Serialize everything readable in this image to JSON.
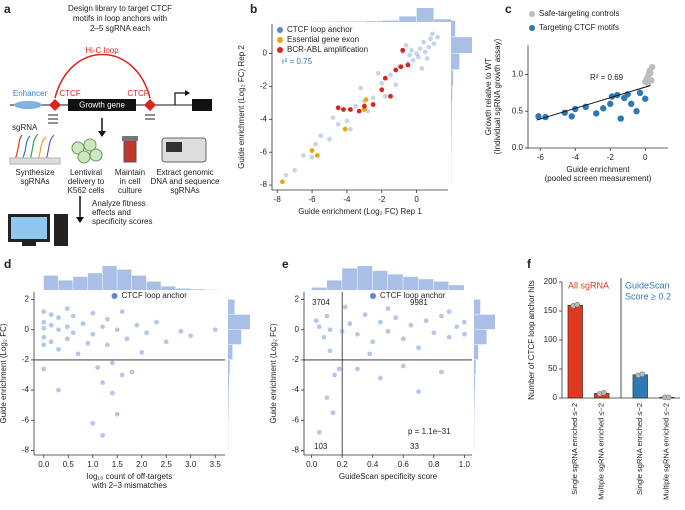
{
  "panel_labels": [
    "a",
    "b",
    "c",
    "d",
    "e",
    "f"
  ],
  "diagram": {
    "title_lines": [
      "Design library to target CTCF",
      "motifs in loop anchors with",
      "2–5 sgRNA each"
    ],
    "loop": "Hi-C loop",
    "enhancer": "Enhancer",
    "ctcf_left": "CTCF",
    "ctcf_right": "CTCF",
    "gene": "Growth gene",
    "sgrna": "sgRNA",
    "step_synthesize": [
      "Synthesize",
      "sgRNAs"
    ],
    "step_delivery": [
      "Lentiviral",
      "delivery to",
      "K562 cells"
    ],
    "step_maintain": [
      "Maintain",
      "in cell",
      "culture"
    ],
    "step_extract": [
      "Extract genomic",
      "DNA and sequence",
      "sgRNAs"
    ],
    "step_analyze": [
      "Analyze fitness",
      "effects and",
      "specificity scores"
    ]
  },
  "chart_data": [
    {
      "type": "scatter",
      "xlabel": [
        "Guide enrichment (Log₂ FC) Rep 1"
      ],
      "ylabel": [
        "Guide enrichment (Log₂ FC) Rep 2"
      ],
      "xlim": [
        -8.3,
        1.8
      ],
      "ylim": [
        -8.3,
        1.8
      ],
      "xticks": [
        -8,
        -6,
        -4,
        -2,
        0
      ],
      "yticks": [
        -8,
        -6,
        -4,
        -2,
        0
      ],
      "legend": "upper left",
      "annotations": [
        "r² = 0.75"
      ],
      "series": [
        {
          "name": "CTCF loop anchor",
          "color": "#5b86c9",
          "opacity": 0.35,
          "x": [
            0.2,
            0.5,
            -0.3,
            0.8,
            -0.5,
            0.1,
            1.0,
            -1.0,
            -1.5,
            -2.0,
            -2.5,
            -3.0,
            -3.5,
            -4.0,
            -4.5,
            -5.0,
            -5.5,
            -6.0,
            -6.5,
            -7.0,
            -7.5,
            0.4,
            -0.2,
            0.6,
            -0.8,
            0.9,
            -1.2,
            -2.2,
            -3.2,
            -1.8,
            0.3,
            -0.6,
            1.2,
            -4.8,
            -2.8,
            0.0,
            0.7,
            -0.4,
            -3.8,
            -5.8
          ],
          "y": [
            0.3,
            0.1,
            0.2,
            0.9,
            -0.6,
            -0.2,
            0.6,
            -0.8,
            -1.3,
            -1.8,
            -2.7,
            -2.9,
            -3.2,
            -4.1,
            -4.3,
            -5.2,
            -5.0,
            -6.3,
            -6.2,
            -7.1,
            -7.4,
            0.7,
            -0.4,
            -0.3,
            0.1,
            1.2,
            -1.9,
            -1.2,
            -2.1,
            -2.6,
            -0.9,
            0.5,
            1.0,
            -3.9,
            -3.5,
            0.0,
            0.4,
            -0.1,
            -4.6,
            -5.5
          ]
        },
        {
          "name": "Essential gene exon",
          "color": "#f0a30a",
          "opacity": 1,
          "x": [
            -7.7,
            -6.0,
            -5.7,
            -4.1,
            -3.0,
            -2.9
          ],
          "y": [
            -7.8,
            -5.9,
            -6.2,
            -4.6,
            -3.4,
            -2.8
          ]
        },
        {
          "name": "BCR-ABL amplification",
          "color": "#d9261c",
          "opacity": 1,
          "x": [
            -4.5,
            -4.2,
            -3.8,
            -3.3,
            -3.0,
            -2.5,
            -2.0,
            -1.8,
            -1.2,
            -0.9,
            -0.8,
            -0.5,
            -1.5
          ],
          "y": [
            -3.3,
            -3.4,
            -3.4,
            -3.5,
            -3.2,
            -3.1,
            -2.2,
            -1.5,
            -1.0,
            -0.8,
            0.2,
            -0.7,
            -2.6
          ]
        }
      ],
      "x_hist": {
        "bins": [
          -8,
          -7,
          -6,
          -5,
          -4,
          -3,
          -2,
          -1,
          0,
          1,
          2
        ],
        "counts": [
          1,
          1,
          2,
          3,
          4,
          6,
          10,
          40,
          100,
          20
        ]
      },
      "y_hist": {
        "bins": [
          -8,
          -7,
          -6,
          -5,
          -4,
          -3,
          -2,
          -1,
          0,
          1,
          2
        ],
        "counts": [
          1,
          1,
          2,
          3,
          4,
          6,
          10,
          40,
          100,
          20
        ]
      }
    },
    {
      "type": "scatter",
      "xlabel": [
        "Guide enrichment",
        "(pooled screen measurement)"
      ],
      "ylabel": [
        "Growth relative to WT",
        "(Individual sgRNA growth assay)"
      ],
      "xlim": [
        -6.7,
        1.3
      ],
      "ylim": [
        0,
        1.4
      ],
      "xticks": [
        -6,
        -4,
        -2,
        0
      ],
      "yticks": [
        {
          "value": 0,
          "label": "0.0"
        },
        0.5,
        {
          "value": 1,
          "label": "1.0"
        }
      ],
      "legend": "top",
      "annotations": [
        "R² = 0.69"
      ],
      "fit": {
        "x": [
          -6.2,
          0.3
        ],
        "y": [
          0.38,
          0.85
        ]
      },
      "series": [
        {
          "name": "Safe-targeting controls",
          "color": "#bdbdbd",
          "opacity": 1,
          "x": [
            0.0,
            0.1,
            0.2,
            0.25,
            0.3,
            0.35,
            0.4,
            0.15
          ],
          "y": [
            0.9,
            0.95,
            1.0,
            1.05,
            1.02,
            0.92,
            1.1,
            0.88
          ]
        },
        {
          "name": "Targeting CTCF motifs",
          "color": "#2f78b5",
          "opacity": 1,
          "x": [
            -6.1,
            -5.7,
            -4.6,
            -4.2,
            -4.0,
            -3.4,
            -2.8,
            -2.4,
            -2.0,
            -1.9,
            -1.6,
            -1.4,
            -1.2,
            -1.0,
            -0.8,
            -0.5,
            -0.3,
            0.0
          ],
          "y": [
            0.43,
            0.42,
            0.48,
            0.43,
            0.53,
            0.56,
            0.47,
            0.54,
            0.6,
            0.7,
            0.72,
            0.4,
            0.68,
            0.73,
            0.6,
            0.5,
            0.75,
            0.67
          ]
        }
      ]
    },
    {
      "type": "scatter",
      "xlabel": [
        "log₁₀ count of off-targets",
        "with 2–3 mismatches"
      ],
      "ylabel": [
        "Guide enrichment (Log₂ FC)"
      ],
      "xlim": [
        -0.2,
        3.7
      ],
      "ylim": [
        -8.3,
        2.5
      ],
      "xticks": [
        {
          "value": 0,
          "label": "0.0"
        },
        0.5,
        {
          "value": 1,
          "label": "1.0"
        },
        1.5,
        {
          "value": 2,
          "label": "2.0"
        },
        2.5,
        {
          "value": 3,
          "label": "3.0"
        },
        3.5
      ],
      "yticks": [
        2,
        0,
        -2,
        -4,
        -6,
        -8
      ],
      "hlines": [
        -2
      ],
      "legend": "upper center",
      "series": [
        {
          "name": "CTCF loop anchor",
          "color": "#5b86c9",
          "opacity": 0.45,
          "x": [
            0,
            0,
            0,
            0,
            0,
            0.15,
            0.15,
            0.15,
            0.3,
            0.3,
            0.3,
            0.48,
            0.48,
            0.48,
            0.6,
            0.6,
            0.7,
            0.8,
            0.9,
            1.0,
            1.0,
            1.1,
            1.2,
            1.2,
            1.3,
            1.3,
            1.4,
            1.4,
            1.5,
            1.5,
            1.6,
            1.6,
            1.7,
            1.8,
            1.9,
            2.0,
            2.1,
            2.3,
            2.5,
            2.8,
            3.0,
            3.5,
            1.2,
            1.0,
            0.3,
            0.0
          ],
          "y": [
            0.5,
            -0.5,
            1.2,
            -1.0,
            0.1,
            0.3,
            -0.8,
            1.0,
            0.0,
            -1.3,
            0.8,
            0.2,
            -0.6,
            1.4,
            -0.2,
            0.9,
            -1.6,
            0.4,
            -0.9,
            1.1,
            -0.3,
            -2.5,
            0.2,
            -3.5,
            -1.0,
            0.7,
            -4.2,
            -2.2,
            0.0,
            -5.6,
            -3.0,
            1.2,
            -0.6,
            -2.8,
            0.3,
            -1.5,
            -0.2,
            0.5,
            -0.8,
            -0.1,
            -0.4,
            0.0,
            -7.0,
            -6.2,
            -4.0,
            -2.6
          ]
        }
      ],
      "x_hist": {
        "bins": [
          0,
          0.3,
          0.6,
          0.9,
          1.2,
          1.5,
          1.8,
          2.1,
          2.4,
          2.7,
          3.0,
          3.3,
          3.6
        ],
        "counts": [
          60,
          40,
          55,
          70,
          100,
          85,
          60,
          35,
          15,
          6,
          3,
          1
        ]
      },
      "y_hist": {
        "bins": [
          -8,
          -7,
          -6,
          -5,
          -4,
          -3,
          -2,
          -1,
          0,
          1,
          2
        ],
        "counts": [
          1,
          1,
          2,
          3,
          5,
          8,
          20,
          60,
          100,
          30
        ]
      }
    },
    {
      "type": "scatter",
      "xlabel": [
        "GuideScan specificity score"
      ],
      "ylabel": [
        "Guide enrichment (Log₂ FC)"
      ],
      "xlim": [
        -0.05,
        1.05
      ],
      "ylim": [
        -8.3,
        2.5
      ],
      "xticks": [
        {
          "value": 0,
          "label": "0.0"
        },
        0.2,
        0.4,
        0.6,
        0.8,
        {
          "value": 1,
          "label": "1.0"
        }
      ],
      "yticks": [
        2,
        0,
        -2,
        -4,
        -6,
        -8
      ],
      "hlines": [
        -2
      ],
      "vlines": [
        0.2
      ],
      "legend": "upper center",
      "annotations": [
        "3704",
        "9981",
        "p = 1.1e−31",
        "103",
        "33"
      ],
      "series": [
        {
          "name": "CTCF loop anchor",
          "color": "#5b86c9",
          "opacity": 0.45,
          "x": [
            0.05,
            0.08,
            0.1,
            0.12,
            0.15,
            0.1,
            0.18,
            0.05,
            0.14,
            0.25,
            0.3,
            0.35,
            0.4,
            0.45,
            0.5,
            0.55,
            0.6,
            0.65,
            0.7,
            0.75,
            0.8,
            0.85,
            0.9,
            0.95,
            1.0,
            1.0,
            0.3,
            0.45,
            0.6,
            0.7,
            0.85,
            0.22,
            0.5,
            0.9,
            0.38,
            0.2,
            0.03,
            0.12
          ],
          "y": [
            0.2,
            -0.5,
            0.9,
            -1.4,
            -3.0,
            -4.5,
            -2.6,
            -6.8,
            -5.5,
            0.4,
            -0.3,
            1.0,
            -0.8,
            0.5,
            -0.1,
            0.8,
            -0.6,
            0.3,
            -1.2,
            0.6,
            -0.2,
            0.9,
            -0.5,
            0.2,
            -0.3,
            0.5,
            -2.6,
            -3.2,
            -2.4,
            -4.1,
            -2.8,
            1.5,
            1.4,
            1.2,
            -1.6,
            -0.1,
            0.6,
            0.0
          ]
        }
      ],
      "x_hist": {
        "bins": [
          0,
          0.1,
          0.2,
          0.3,
          0.4,
          0.5,
          0.6,
          0.7,
          0.8,
          0.9,
          1.0
        ],
        "counts": [
          10,
          40,
          90,
          100,
          80,
          65,
          55,
          45,
          35,
          20
        ]
      },
      "y_hist": {
        "bins": [
          -8,
          -7,
          -6,
          -5,
          -4,
          -3,
          -2,
          -1,
          0,
          1,
          2
        ],
        "counts": [
          1,
          1,
          2,
          3,
          5,
          8,
          20,
          60,
          100,
          30
        ]
      }
    },
    {
      "type": "bar",
      "ylabel": [
        "Number of CTCF loop anchor hits"
      ],
      "categories": [
        "Single sgRNA enriched ≤−2",
        "Multiple sgRNA enriched ≤−2",
        "Single sgRNA enriched ≤−2",
        "Multiple sgRNA enriched ≤−2"
      ],
      "values": [
        160,
        8,
        40,
        1
      ],
      "colors": [
        "#e03a1e",
        "#e03a1e",
        "#2f78b5",
        "#2f78b5"
      ],
      "points": [
        [
          159,
          161
        ],
        [
          7,
          9
        ],
        [
          39,
          41
        ],
        [
          1,
          1
        ]
      ],
      "groups": [
        {
          "name": [
            "All sgRNA"
          ],
          "color": "#e03a1e"
        },
        {
          "name": [
            "GuideScan",
            "Score ≥ 0.2"
          ],
          "color": "#2f78b5"
        }
      ],
      "ylim": [
        0,
        200
      ],
      "yticks": [
        0,
        50,
        100,
        150,
        200
      ]
    }
  ]
}
